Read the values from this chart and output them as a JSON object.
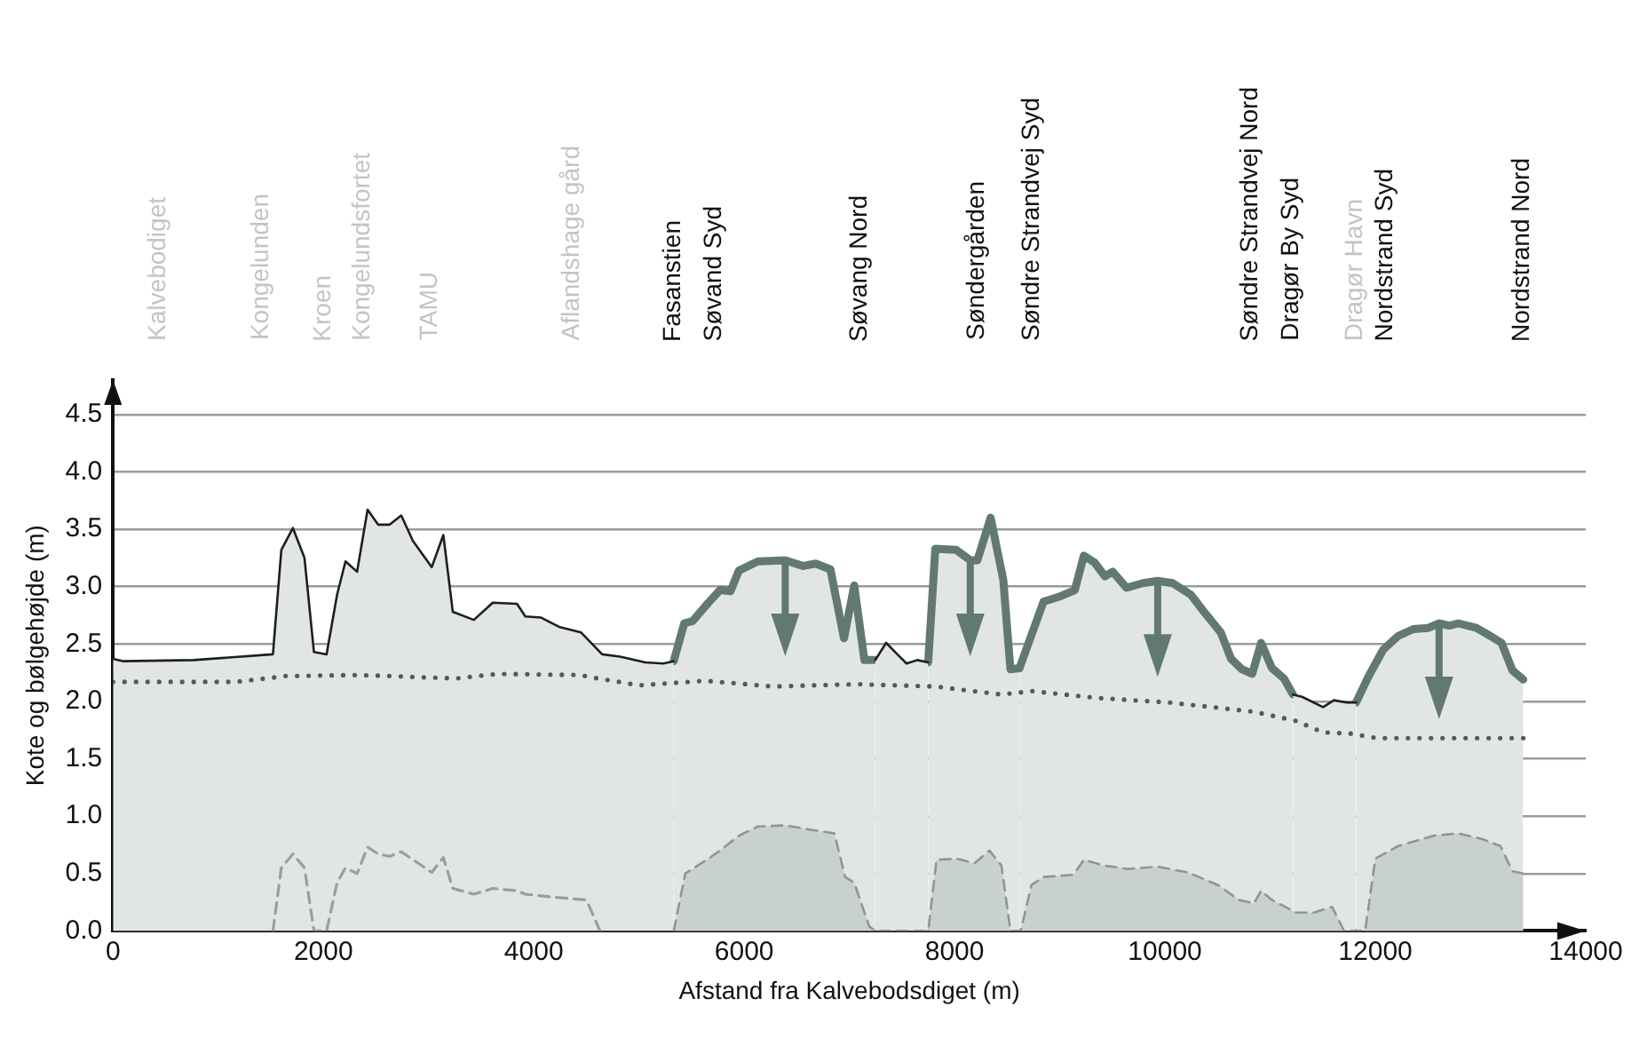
{
  "chart_data": {
    "type": "line",
    "xlabel": "Afstand fra Kalvebodsdiget (m)",
    "ylabel": "Kote og bølgehøjde (m)",
    "xlim": [
      0,
      14000
    ],
    "xticks": [
      0,
      2000,
      4000,
      6000,
      8000,
      10000,
      12000,
      14000
    ],
    "ylim": [
      0,
      4.8
    ],
    "yticks": [
      {
        "value": 0,
        "label": "0.0"
      },
      0.5,
      {
        "value": 1,
        "label": "1.0"
      },
      1.5,
      {
        "value": 2,
        "label": "2.0"
      },
      2.5,
      {
        "value": 3,
        "label": "3.0"
      },
      3.5,
      {
        "value": 4,
        "label": "4.0"
      },
      4.5
    ],
    "grid": "y",
    "marker": "none",
    "series": [
      {
        "type": "area",
        "color": "#e1e6e5",
        "line_style": "solid",
        "x": [
          0,
          100,
          765,
          1520,
          1600,
          1710,
          1820,
          1910,
          2030,
          2130,
          2210,
          2320,
          2420,
          2520,
          2630,
          2740,
          2850,
          3030,
          3140,
          3230,
          3430,
          3610,
          3840,
          3920,
          4070,
          4240,
          4450,
          4650,
          4820,
          5060,
          5230,
          5330,
          5430,
          5510,
          5660,
          5770,
          5870,
          5950,
          6130,
          6390,
          6560,
          6680,
          6820,
          6949,
          7046,
          7143,
          7246,
          7349,
          7543,
          7646,
          7749,
          7817,
          8017,
          8149,
          8217,
          8343,
          8463,
          8531,
          8617,
          8846,
          8989,
          9143,
          9229,
          9331,
          9429,
          9503,
          9634,
          9789,
          9931,
          10074,
          10246,
          10389,
          10531,
          10629,
          10731,
          10829,
          10914,
          11017,
          11131,
          11217,
          11303,
          11503,
          11606,
          11731,
          11817
        ],
        "values": [
          2.37,
          2.35,
          2.36,
          2.41,
          3.32,
          3.51,
          3.25,
          2.43,
          2.41,
          2.93,
          3.22,
          3.13,
          3.67,
          3.54,
          3.54,
          3.62,
          3.4,
          3.17,
          3.45,
          2.78,
          2.71,
          2.86,
          2.85,
          2.74,
          2.73,
          2.65,
          2.6,
          2.41,
          2.39,
          2.34,
          2.33,
          2.35,
          null,
          null,
          null,
          null,
          null,
          null,
          null,
          null,
          null,
          null,
          null,
          null,
          null,
          null,
          2.36,
          2.51,
          2.33,
          2.36,
          2.34,
          null,
          null,
          null,
          null,
          null,
          null,
          null,
          null,
          null,
          null,
          null,
          null,
          null,
          null,
          null,
          null,
          null,
          null,
          null,
          null,
          null,
          null,
          null,
          null,
          null,
          null,
          null,
          null,
          2.06,
          2.04,
          1.95,
          2.01,
          1.99,
          1.99
        ]
      },
      {
        "type": "area",
        "color": "#c9d1cf",
        "line_style": "dashed",
        "x": [
          5330,
          5440,
          5660,
          5770,
          5950,
          6130,
          6390,
          6646,
          6857,
          6960,
          7046,
          7189,
          7246,
          7749,
          7829,
          8017,
          8189,
          8331,
          8446,
          8531,
          8629,
          8731,
          8846,
          9131,
          9229,
          9417,
          9646,
          9931,
          10217,
          10503,
          10703,
          10846,
          10914,
          11017,
          11246,
          11417,
          11589,
          11703,
          11903,
          12000,
          12217,
          12560,
          12789,
          13017,
          13189,
          13303,
          13406
        ],
        "values": [
          0,
          0.5,
          0.63,
          0.7,
          0.83,
          0.91,
          0.92,
          0.88,
          0.85,
          0.47,
          0.42,
          0.04,
          0,
          0,
          0.62,
          0.63,
          0.59,
          0.7,
          0.57,
          0,
          0,
          0.4,
          0.47,
          0.49,
          0.62,
          0.57,
          0.54,
          0.56,
          0.51,
          0.4,
          0.27,
          0.24,
          0.35,
          0.27,
          0.16,
          0.16,
          0.21,
          0,
          0,
          0.63,
          0.74,
          0.83,
          0.85,
          0.8,
          0.74,
          0.52,
          0.5
        ]
      },
      {
        "type": "line",
        "color": "#9a9f9e",
        "line_style": "dashed",
        "x": [
          1520,
          1600,
          1710,
          1820,
          1910,
          2030,
          2130,
          2210,
          2320,
          2420,
          2520,
          2630,
          2740,
          3030,
          3140,
          3230,
          3430,
          3610,
          3840,
          3920,
          4240,
          4500,
          4630
        ],
        "values": [
          0,
          0.55,
          0.67,
          0.55,
          0,
          0,
          0.42,
          0.55,
          0.5,
          0.73,
          0.67,
          0.65,
          0.69,
          0.51,
          0.64,
          0.37,
          0.32,
          0.37,
          0.35,
          0.32,
          0.29,
          0.27,
          0
        ]
      },
      {
        "type": "line",
        "color": "#555a59",
        "line_style": "dotted",
        "x": [
          0,
          1170,
          1635,
          2330,
          3260,
          3660,
          4420,
          5000,
          5630,
          6270,
          7074,
          7817,
          8446,
          8731,
          9360,
          10046,
          10846,
          11246,
          11503,
          11760,
          12017,
          12789,
          13406
        ],
        "values": [
          2.17,
          2.17,
          2.22,
          2.23,
          2.2,
          2.24,
          2.23,
          2.14,
          2.18,
          2.13,
          2.15,
          2.13,
          2.06,
          2.09,
          2.03,
          1.99,
          1.91,
          1.83,
          1.73,
          1.72,
          1.68,
          1.68,
          1.68
        ]
      },
      {
        "type": "area",
        "color": "#627873",
        "line_style": "solid",
        "x": [
          5330,
          5430,
          5510,
          5660,
          5770,
          5870,
          5950,
          6130,
          6390,
          6560,
          6680,
          6820,
          6949,
          7046,
          7143,
          7246
        ],
        "values": [
          2.35,
          2.68,
          2.7,
          2.86,
          2.97,
          2.96,
          3.14,
          3.22,
          3.23,
          3.18,
          3.2,
          3.15,
          2.55,
          3.01,
          2.36,
          2.36
        ]
      },
      {
        "type": "area",
        "color": "#627873",
        "line_style": "solid",
        "x": [
          7749,
          7817,
          8017,
          8149,
          8217,
          8343,
          8463,
          8531,
          8617
        ],
        "values": [
          2.34,
          3.33,
          3.32,
          3.23,
          3.23,
          3.6,
          3.06,
          2.28,
          2.29
        ]
      },
      {
        "type": "area",
        "color": "#627873",
        "line_style": "solid",
        "x": [
          8617,
          8846,
          8989,
          9143,
          9229,
          9331,
          9429,
          9503,
          9634,
          9789,
          9931,
          10074,
          10246,
          10389,
          10531,
          10629,
          10731,
          10829,
          10914,
          11017,
          11131,
          11217
        ],
        "values": [
          2.29,
          2.87,
          2.91,
          2.97,
          3.27,
          3.21,
          3.09,
          3.13,
          2.99,
          3.03,
          3.05,
          3.03,
          2.93,
          2.76,
          2.6,
          2.37,
          2.28,
          2.24,
          2.51,
          2.29,
          2.2,
          2.06
        ]
      },
      {
        "type": "area",
        "color": "#627873",
        "line_style": "solid",
        "x": [
          11817,
          11931,
          12074,
          12217,
          12360,
          12503,
          12606,
          12703,
          12789,
          12960,
          13074,
          13200,
          13303,
          13406
        ],
        "values": [
          1.99,
          2.21,
          2.45,
          2.57,
          2.63,
          2.64,
          2.68,
          2.66,
          2.68,
          2.64,
          2.58,
          2.51,
          2.27,
          2.19
        ]
      }
    ],
    "annotations": [
      "Kalvebodiget",
      "Kongelunden",
      "Kroen",
      "Kongelundsfortet",
      "TAMU",
      "Aflandshage gård",
      "Fasanstien",
      "Søvand Syd",
      "Søvang Nord",
      "Søndergården",
      "Søndre Strandvej Syd",
      "Søndre Strandvej Nord",
      "Dragør By Syd",
      "Dragør Havn",
      "Nordstrand Syd",
      "Nordstrand Nord"
    ]
  }
}
